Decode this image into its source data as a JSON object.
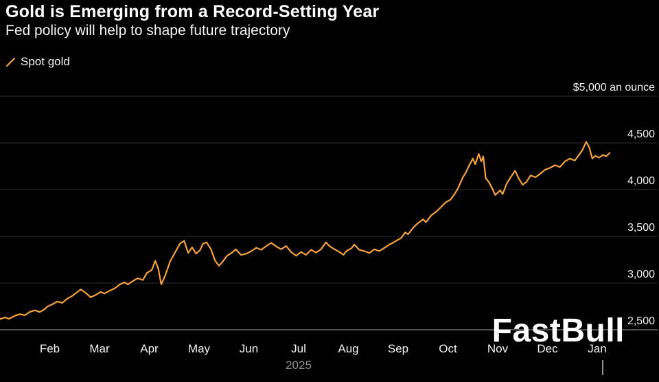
{
  "chart_data": {
    "type": "line",
    "title": "Gold is Emerging from a Record-Setting Year",
    "subtitle": "Fed policy will help to shape future trajectory",
    "legend": {
      "label": "Spot gold",
      "position": "top-left"
    },
    "x_unit": "months since 2025-01-01",
    "xlim": [
      0,
      12.3
    ],
    "ylim": [
      2400,
      5000
    ],
    "grid": "horizontal",
    "background": "#000000",
    "colors": {
      "line": "#f7a33c",
      "grid": "#2d2d2d",
      "axis": "#6a6a6a",
      "text": "#f2f2f2",
      "muted": "#8f8f8f"
    },
    "y_ticks": [
      5000,
      4500,
      4000,
      3500,
      3000,
      2500
    ],
    "y_tick_labels": [
      "$5,000 an ounce",
      "4,500",
      "4,000",
      "3,500",
      "3,000",
      "2,500"
    ],
    "x_tick_months": [
      1,
      2,
      3,
      4,
      5,
      6,
      7,
      8,
      9,
      10,
      11,
      12
    ],
    "x_tick_labels": [
      "Feb",
      "Mar",
      "Apr",
      "May",
      "Jun",
      "Jul",
      "Aug",
      "Sep",
      "Oct",
      "Nov",
      "Dec",
      "Jan"
    ],
    "year_label": "2025",
    "year_label_month": 6,
    "series": [
      {
        "name": "Spot gold",
        "color": "#f7a33c",
        "unit": "USD per ounce",
        "points": [
          [
            0,
            2615
          ],
          [
            0.1,
            2632
          ],
          [
            0.18,
            2618
          ],
          [
            0.3,
            2650
          ],
          [
            0.4,
            2668
          ],
          [
            0.5,
            2655
          ],
          [
            0.6,
            2692
          ],
          [
            0.7,
            2708
          ],
          [
            0.8,
            2690
          ],
          [
            0.9,
            2722
          ],
          [
            0.95,
            2748
          ],
          [
            1.05,
            2772
          ],
          [
            1.15,
            2802
          ],
          [
            1.25,
            2788
          ],
          [
            1.35,
            2832
          ],
          [
            1.45,
            2862
          ],
          [
            1.55,
            2902
          ],
          [
            1.62,
            2932
          ],
          [
            1.72,
            2896
          ],
          [
            1.82,
            2848
          ],
          [
            1.92,
            2872
          ],
          [
            2.02,
            2905
          ],
          [
            2.1,
            2888
          ],
          [
            2.2,
            2918
          ],
          [
            2.3,
            2942
          ],
          [
            2.4,
            2982
          ],
          [
            2.5,
            3008
          ],
          [
            2.57,
            2986
          ],
          [
            2.67,
            3022
          ],
          [
            2.77,
            3052
          ],
          [
            2.87,
            3032
          ],
          [
            2.95,
            3108
          ],
          [
            3.05,
            3140
          ],
          [
            3.12,
            3238
          ],
          [
            3.18,
            3152
          ],
          [
            3.24,
            2986
          ],
          [
            3.32,
            3082
          ],
          [
            3.42,
            3232
          ],
          [
            3.52,
            3330
          ],
          [
            3.62,
            3424
          ],
          [
            3.7,
            3452
          ],
          [
            3.78,
            3322
          ],
          [
            3.86,
            3382
          ],
          [
            3.94,
            3315
          ],
          [
            4.02,
            3352
          ],
          [
            4.08,
            3422
          ],
          [
            4.15,
            3436
          ],
          [
            4.24,
            3362
          ],
          [
            4.32,
            3242
          ],
          [
            4.4,
            3185
          ],
          [
            4.48,
            3232
          ],
          [
            4.56,
            3292
          ],
          [
            4.65,
            3322
          ],
          [
            4.74,
            3360
          ],
          [
            4.84,
            3302
          ],
          [
            4.94,
            3312
          ],
          [
            5.05,
            3342
          ],
          [
            5.15,
            3378
          ],
          [
            5.25,
            3356
          ],
          [
            5.35,
            3396
          ],
          [
            5.45,
            3430
          ],
          [
            5.55,
            3392
          ],
          [
            5.65,
            3362
          ],
          [
            5.75,
            3396
          ],
          [
            5.85,
            3332
          ],
          [
            5.95,
            3292
          ],
          [
            6.05,
            3332
          ],
          [
            6.15,
            3302
          ],
          [
            6.25,
            3356
          ],
          [
            6.35,
            3326
          ],
          [
            6.45,
            3362
          ],
          [
            6.55,
            3436
          ],
          [
            6.62,
            3396
          ],
          [
            6.72,
            3362
          ],
          [
            6.82,
            3332
          ],
          [
            6.9,
            3302
          ],
          [
            6.96,
            3342
          ],
          [
            7.06,
            3372
          ],
          [
            7.12,
            3412
          ],
          [
            7.22,
            3356
          ],
          [
            7.32,
            3342
          ],
          [
            7.42,
            3322
          ],
          [
            7.52,
            3362
          ],
          [
            7.62,
            3342
          ],
          [
            7.72,
            3376
          ],
          [
            7.82,
            3412
          ],
          [
            7.9,
            3432
          ],
          [
            7.96,
            3452
          ],
          [
            8.06,
            3482
          ],
          [
            8.14,
            3542
          ],
          [
            8.2,
            3522
          ],
          [
            8.3,
            3592
          ],
          [
            8.4,
            3642
          ],
          [
            8.5,
            3682
          ],
          [
            8.56,
            3652
          ],
          [
            8.66,
            3722
          ],
          [
            8.76,
            3762
          ],
          [
            8.86,
            3812
          ],
          [
            8.95,
            3862
          ],
          [
            9.05,
            3892
          ],
          [
            9.12,
            3942
          ],
          [
            9.2,
            4012
          ],
          [
            9.3,
            4132
          ],
          [
            9.36,
            4182
          ],
          [
            9.42,
            4252
          ],
          [
            9.5,
            4332
          ],
          [
            9.55,
            4272
          ],
          [
            9.62,
            4382
          ],
          [
            9.67,
            4302
          ],
          [
            9.71,
            4356
          ],
          [
            9.76,
            4122
          ],
          [
            9.82,
            4082
          ],
          [
            9.9,
            4002
          ],
          [
            9.95,
            3942
          ],
          [
            10.05,
            3992
          ],
          [
            10.1,
            3952
          ],
          [
            10.18,
            4062
          ],
          [
            10.26,
            4132
          ],
          [
            10.35,
            4202
          ],
          [
            10.42,
            4122
          ],
          [
            10.5,
            4052
          ],
          [
            10.58,
            4082
          ],
          [
            10.66,
            4152
          ],
          [
            10.76,
            4132
          ],
          [
            10.86,
            4172
          ],
          [
            10.95,
            4212
          ],
          [
            11.05,
            4232
          ],
          [
            11.15,
            4262
          ],
          [
            11.25,
            4242
          ],
          [
            11.35,
            4302
          ],
          [
            11.45,
            4332
          ],
          [
            11.55,
            4312
          ],
          [
            11.62,
            4362
          ],
          [
            11.7,
            4422
          ],
          [
            11.78,
            4512
          ],
          [
            11.84,
            4452
          ],
          [
            11.9,
            4332
          ],
          [
            11.96,
            4362
          ],
          [
            12.04,
            4342
          ],
          [
            12.12,
            4372
          ],
          [
            12.18,
            4356
          ],
          [
            12.25,
            4392
          ]
        ]
      }
    ]
  },
  "watermark": {
    "text": "FastBull"
  }
}
